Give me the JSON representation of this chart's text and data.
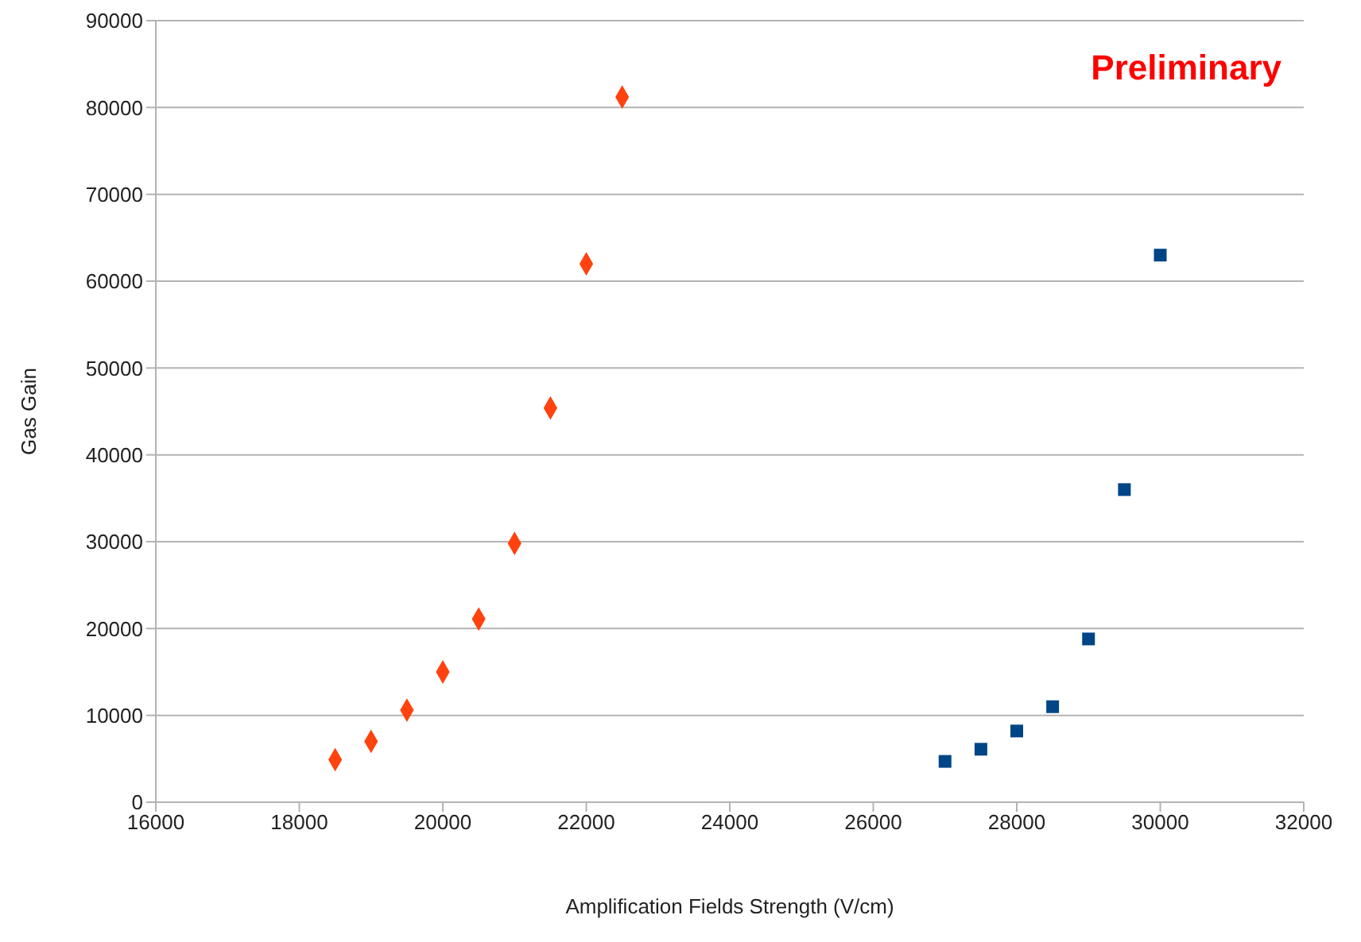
{
  "chart_data": {
    "type": "scatter",
    "xlabel": "Amplification Fields Strength (V/cm)",
    "ylabel": "Gas Gain",
    "annotations": [
      "Preliminary"
    ],
    "xlim": [
      16000,
      32000
    ],
    "xticks": [
      16000,
      18000,
      20000,
      22000,
      24000,
      26000,
      28000,
      30000,
      32000
    ],
    "ylim": [
      0,
      90000
    ],
    "yticks": [
      0,
      10000,
      20000,
      30000,
      40000,
      50000,
      60000,
      70000,
      80000,
      90000
    ],
    "grid": "y",
    "series": [
      {
        "color": "#ff420e",
        "marker": "diamond",
        "x": [
          18500,
          19000,
          19500,
          20000,
          20500,
          21000,
          21500,
          22000,
          22500
        ],
        "values": [
          4900,
          7000,
          10600,
          15000,
          21100,
          29800,
          45400,
          62000,
          81200
        ]
      },
      {
        "color": "#004586",
        "marker": "square",
        "x": [
          27000,
          27500,
          28000,
          28500,
          29000,
          29500,
          30000
        ],
        "values": [
          4700,
          6100,
          8200,
          11000,
          18800,
          36000,
          63000
        ]
      }
    ]
  }
}
